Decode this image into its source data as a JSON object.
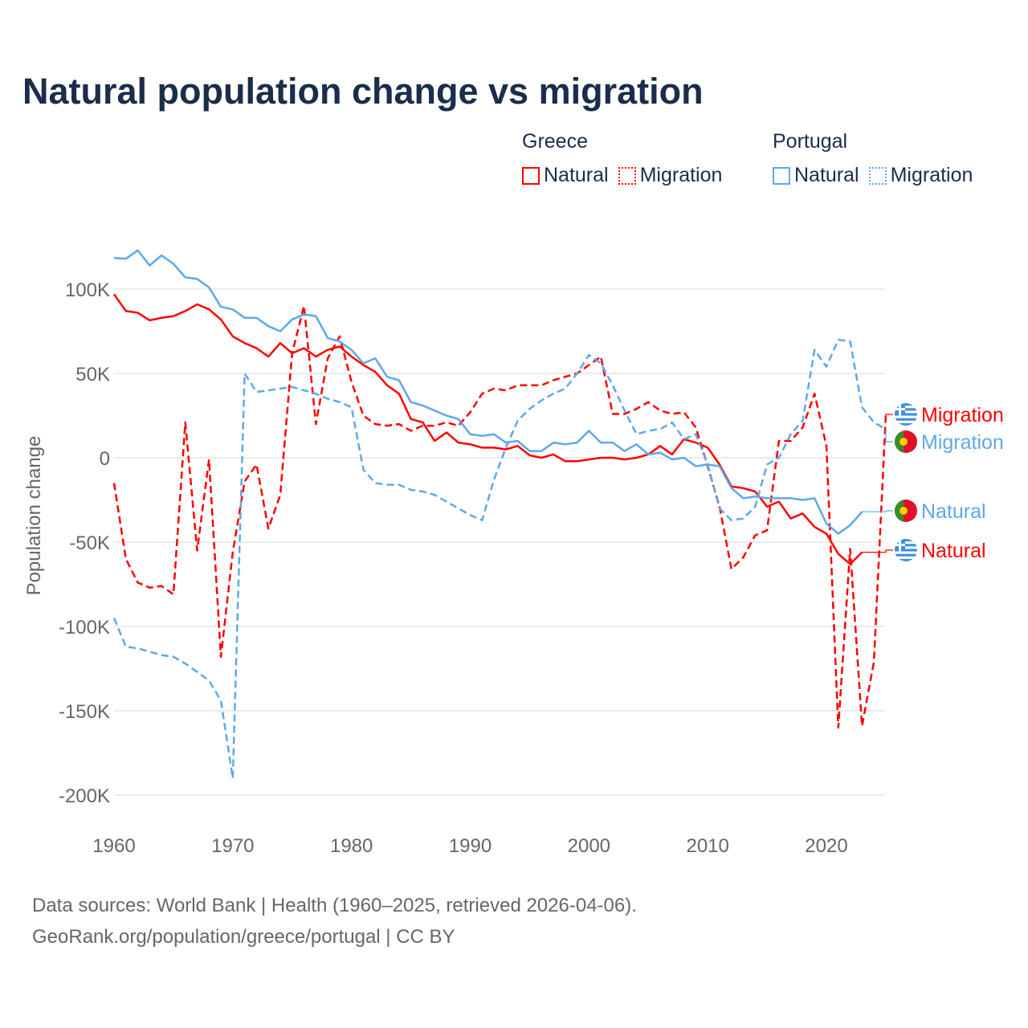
{
  "title": "Natural population change vs migration",
  "legend": {
    "groups": [
      {
        "name": "Greece",
        "items": [
          {
            "label": "Natural",
            "style": "solid",
            "color": "#ff0000"
          },
          {
            "label": "Migration",
            "style": "dotted",
            "color": "#ff0000"
          }
        ]
      },
      {
        "name": "Portugal",
        "items": [
          {
            "label": "Natural",
            "style": "solid",
            "color": "#5ea8ea"
          },
          {
            "label": "Migration",
            "style": "dotted",
            "color": "#5ea8ea"
          }
        ]
      }
    ]
  },
  "footer": {
    "line1": "Data sources: World Bank | Health (1960–2025, retrieved 2026-04-06).",
    "line2": "GeoRank.org/population/greece/portugal | CC BY"
  },
  "chart_data": {
    "type": "line",
    "title": "Natural population change vs migration",
    "xlabel": "",
    "ylabel": "Population change",
    "xlim": [
      1960,
      2025
    ],
    "ylim": [
      -200000,
      100000
    ],
    "xticks": [
      {
        "v": 1960,
        "label": "1960"
      },
      {
        "v": 1970,
        "label": "1970"
      },
      {
        "v": 1980,
        "label": "1980"
      },
      {
        "v": 1990,
        "label": "1990"
      },
      {
        "v": 2000,
        "label": "2000"
      },
      {
        "v": 2010,
        "label": "2010"
      },
      {
        "v": 2020,
        "label": "2020"
      }
    ],
    "yticks": [
      {
        "v": 100,
        "label": "100K"
      },
      {
        "v": 50,
        "label": "50K"
      },
      {
        "v": 0,
        "label": "0"
      },
      {
        "v": -50,
        "label": "-50K"
      },
      {
        "v": -100,
        "label": "-100K"
      },
      {
        "v": -150,
        "label": "-150K"
      },
      {
        "v": -200,
        "label": "-200K"
      }
    ],
    "units": "thousands",
    "grid": true,
    "series": [
      {
        "name": "Greece Natural",
        "end_label": "Natural",
        "country": "Greece",
        "color": "#ff0000",
        "dash": false,
        "start": 1960,
        "values": [
          97,
          87,
          86,
          81.5,
          83,
          84,
          87,
          91,
          88,
          82,
          72,
          68,
          65,
          60,
          68,
          62,
          65,
          60,
          64,
          66,
          60,
          55,
          51,
          43,
          38,
          23,
          21,
          10,
          15,
          9,
          8,
          6,
          6,
          5,
          7,
          1.5,
          0,
          2,
          -2,
          -2,
          -1,
          0,
          0,
          -1,
          0,
          2,
          7,
          2,
          11,
          9,
          6,
          -4,
          -17,
          -18,
          -20,
          -29,
          -26,
          -36,
          -33,
          -41,
          -45,
          -57,
          -63,
          -56
        ]
      },
      {
        "name": "Greece Migration",
        "end_label": "Migration",
        "country": "Greece",
        "color": "#ff0000",
        "dash": true,
        "start": 1960,
        "values": [
          -15,
          -60,
          -74,
          -77,
          -76,
          -81,
          21,
          -55,
          -1,
          -118,
          -56,
          -14,
          -4,
          -42,
          -22,
          62,
          90,
          20,
          59,
          72,
          45,
          25,
          20,
          19,
          20,
          16,
          19,
          19,
          21,
          19,
          27,
          38,
          41,
          40,
          43,
          43,
          43,
          46,
          48,
          50,
          55,
          60,
          26,
          26,
          29,
          33,
          28,
          26,
          27,
          18,
          -5,
          -29,
          -66,
          -59,
          -46,
          -43,
          10,
          10,
          18,
          38,
          7,
          -160,
          -54,
          -159,
          -121,
          25
        ]
      },
      {
        "name": "Portugal Natural",
        "end_label": "Natural",
        "country": "Portugal",
        "color": "#5ea8ea",
        "dash": false,
        "start": 1960,
        "values": [
          118.5,
          118,
          123,
          114,
          120,
          115,
          107,
          106,
          101,
          89.5,
          88,
          83,
          83,
          78,
          75,
          82,
          85,
          84,
          71,
          69,
          64,
          56,
          59,
          48,
          46,
          33,
          31,
          28,
          25,
          23,
          14,
          13,
          14,
          9,
          10,
          4,
          4,
          9,
          8,
          9,
          16,
          9,
          9,
          4,
          8,
          2,
          3,
          -1,
          0,
          -5,
          -4,
          -5,
          -18,
          -24,
          -23,
          -24,
          -24,
          -24,
          -25,
          -24,
          -39,
          -45,
          -40,
          -32
        ]
      },
      {
        "name": "Portugal Migration",
        "end_label": "Migration",
        "country": "Portugal",
        "color": "#5ea8ea",
        "dash": true,
        "start": 1960,
        "values": [
          -95,
          -112,
          -113,
          -115,
          -117,
          -118,
          -122,
          -127,
          -132,
          -144,
          -190,
          50,
          39,
          40,
          41,
          42,
          40,
          38,
          35,
          33,
          30,
          -7,
          -15,
          -16,
          -16,
          -19,
          -20,
          -22,
          -26,
          -30,
          -34,
          -37,
          -13,
          6,
          22,
          29,
          34,
          38,
          41,
          50,
          61,
          56,
          43,
          28,
          14,
          16,
          17,
          21,
          11,
          14,
          -4,
          -30,
          -37,
          -36,
          -29,
          -4,
          0,
          14,
          22,
          64,
          54,
          70,
          69,
          30,
          21,
          17
        ]
      }
    ]
  }
}
